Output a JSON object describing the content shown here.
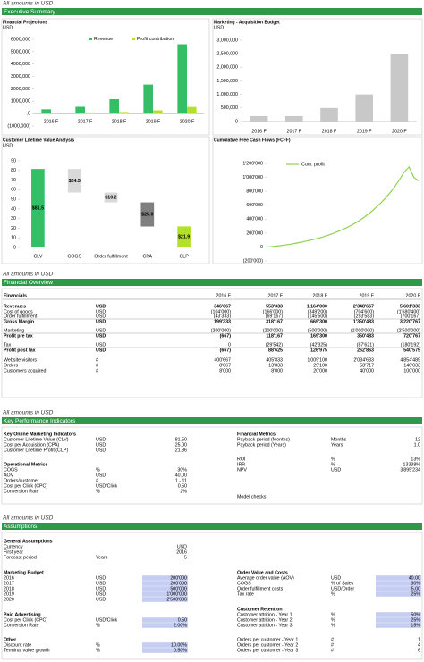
{
  "sections": [
    {
      "note": "All amounts in USD",
      "title": "Executive Summary"
    },
    {
      "note": "All amounts in USD",
      "title": "Financial Overview"
    },
    {
      "note": "All amounts in USD",
      "title": "Key Performance Indicators"
    },
    {
      "note": "All amounts in USD",
      "title": "Assumptions"
    }
  ],
  "chart_data": [
    {
      "type": "bar",
      "title": "Financial Projections",
      "unit": "USD",
      "categories": [
        "2016 F",
        "2017 F",
        "2018 F",
        "2019 F",
        "2020 F"
      ],
      "series": [
        {
          "name": "Revenue",
          "color": "#34bf67",
          "values": [
            346667,
            553333,
            1164000,
            2348667,
            5601333
          ]
        },
        {
          "name": "Profit contribution",
          "color": "#b3e12a",
          "values": [
            -667,
            88625,
            126975,
            262863,
            540575
          ]
        }
      ],
      "ylim": [
        -1000000,
        6000000
      ],
      "yticks": [
        {
          "value": 6000000,
          "label": "6000,000"
        },
        {
          "value": 5000000,
          "label": "5000,000"
        },
        {
          "value": 4000000,
          "label": "4000,000"
        },
        {
          "value": 3000000,
          "label": "3000,000"
        },
        {
          "value": 2000000,
          "label": "2000,000"
        },
        {
          "value": 1000000,
          "label": "1000,000"
        },
        {
          "value": 0,
          "label": ".0"
        },
        {
          "value": -1000000,
          "label": "(1000,000)"
        }
      ]
    },
    {
      "type": "bar",
      "title": "Marketing - Acquisition Budget",
      "unit": "USD",
      "categories": [
        "2016 F",
        "2017 F",
        "2018 F",
        "2019 F",
        "2020 F"
      ],
      "series": [
        {
          "color": "#c8c8c8",
          "values": [
            200000,
            200000,
            500000,
            1000000,
            2500000
          ]
        }
      ],
      "ylim": [
        0,
        3000000
      ],
      "yticks": [
        0,
        {
          "value": 500000,
          "label": "500,000"
        },
        {
          "value": 1000000,
          "label": "1,000,000"
        },
        {
          "value": 1500000,
          "label": "1,500,000"
        },
        {
          "value": 2000000,
          "label": "2,000,000"
        },
        {
          "value": 2500000,
          "label": "2,500,000"
        },
        {
          "value": 3000000,
          "label": "3,000,000"
        }
      ]
    },
    {
      "type": "waterfall",
      "title": "Customer Lifetime Value Analysis",
      "unit": "USD",
      "categories": [
        "CLV",
        "COGS",
        "Order fulfillment",
        "CPA",
        "CLP"
      ],
      "values": [
        81.5,
        24.5,
        10.2,
        25.0,
        21.9
      ],
      "value_labels": [
        "$81.5",
        "$24.5",
        "$10.2",
        "$25.0",
        "$21.9"
      ],
      "colors": [
        "#34bf67",
        "#d9d9d9",
        "#d9d9d9",
        "#7f7f7f",
        "#b3e12a"
      ],
      "ylim": [
        0,
        90
      ],
      "yticks": [
        0,
        10,
        20,
        30,
        40,
        50,
        60,
        70,
        80,
        90
      ]
    },
    {
      "type": "line",
      "title": "Cumulative Free Cash Flows (FCFF)",
      "series": [
        {
          "name": "Cum. profit",
          "color": "#8fd14f",
          "values": [
            0,
            5000,
            12000,
            20000,
            30000,
            40000,
            52000,
            65000,
            80000,
            95000,
            110000,
            128000,
            148000,
            170000,
            195000,
            222000,
            250000,
            282000,
            318000,
            358000,
            400000,
            450000,
            505000,
            565000,
            630000,
            700000,
            780000,
            870000,
            970000,
            1080000,
            1150000,
            1000000,
            950000
          ]
        }
      ],
      "ylim": [
        -200000,
        1200000
      ],
      "yticks": [
        {
          "value": 1200000,
          "label": "1'200'000"
        },
        {
          "value": 1000000,
          "label": "1'000'000"
        },
        {
          "value": 800000,
          "label": "800'000"
        },
        {
          "value": 600000,
          "label": "600'000"
        },
        {
          "value": 400000,
          "label": "400'000"
        },
        {
          "value": 200000,
          "label": "200'000"
        },
        0,
        {
          "value": -200000,
          "label": "(200'000)"
        }
      ]
    }
  ],
  "financial_overview": {
    "header": [
      "Financials",
      "2016 F",
      "2017 F",
      "2018 F",
      "2019 F",
      "2020 F"
    ],
    "rows": [
      [
        "Revenues",
        "USD",
        "346'667",
        "553'333",
        "1'164'000",
        "2'348'667",
        "5'601'333"
      ],
      [
        "Cost of goods",
        "USD",
        "(104'000)",
        "(166'000)",
        "(349'200)",
        "(704'600)",
        "(1'680'400)"
      ],
      [
        "Order fulfillment",
        "USD",
        "(43'333)",
        "(69'167)",
        "(145'500)",
        "(293'583)",
        "(700'167)"
      ],
      [
        "Gross Margin",
        "USD",
        "199'333",
        "318'167",
        "669'300",
        "1'350'483",
        "3'220'767"
      ],
      [
        "Marketing",
        "USD",
        "(200'000)",
        "(200'000)",
        "(500'000)",
        "(1'000'000)",
        "(2'500'000)"
      ],
      [
        "Profit pre tax",
        "USD",
        "(667)",
        "118'167",
        "169'300",
        "350'483",
        "720'767"
      ],
      [
        "Tax",
        "USD",
        "0",
        "(29'542)",
        "(42'325)",
        "(87'621)",
        "(180'192)"
      ],
      [
        "Profit post tax",
        "USD",
        "(667)",
        "88'625",
        "126'975",
        "262'863",
        "540'575"
      ],
      [
        "Website visitors",
        "#",
        "400'667",
        "405'833",
        "1'009'100",
        "2'034'633",
        "4'854'489"
      ],
      [
        "Orders",
        "#",
        "8'667",
        "13'833",
        "29'100",
        "58'717",
        "140'033"
      ],
      [
        "Customers acquired",
        "#",
        "8'000",
        "8'000",
        "20'000",
        "40'000",
        "100'000"
      ]
    ]
  },
  "kpi": {
    "left": [
      {
        "title": "Key Online Marketing Indicators",
        "rows": [
          [
            "Customer Lifetime Value (CLV)",
            "USD",
            "81.50"
          ],
          [
            "Cost per Acquisition (CPA)",
            "USD",
            "25.00"
          ],
          [
            "Customer Lifetime Profit (CLP)",
            "USD",
            "21.86"
          ]
        ]
      },
      {
        "title": "Operational Metrics",
        "rows": [
          [
            "COGS",
            "%",
            "30%"
          ],
          [
            "AOV",
            "USD",
            "40.00"
          ],
          [
            "Orders/customer",
            "#",
            "1 - 11"
          ],
          [
            "Cost per Click (CPC)",
            "USD/Click",
            "0.50"
          ],
          [
            "Conversion Rate",
            "%",
            "2%"
          ]
        ]
      }
    ],
    "right": [
      {
        "title": "Financial Metrics",
        "rows": [
          [
            "Payback period (Months)",
            "Months",
            "12"
          ],
          [
            "Payback period (Years)",
            "Years",
            "1.0"
          ]
        ]
      },
      {
        "rows": [
          [
            "ROI",
            "%",
            "13%"
          ],
          [
            "IRR",
            "%",
            "13338%"
          ],
          [
            "NPV",
            "USD",
            "3'895'234"
          ]
        ]
      },
      {
        "rows": [
          [
            "Model checks"
          ]
        ]
      }
    ]
  },
  "assumptions": {
    "left": [
      {
        "title": "General Assumptions",
        "rows": [
          [
            "Currency",
            "",
            "USD"
          ],
          [
            "First year",
            "",
            "2016"
          ],
          [
            "Forecast period",
            "Years",
            "5"
          ]
        ]
      },
      {
        "title": "Marketing Budget",
        "rows": [
          [
            "2016",
            "USD",
            "200'000"
          ],
          [
            "2017",
            "USD",
            "200'000"
          ],
          [
            "2018",
            "USD",
            "500'000"
          ],
          [
            "2019",
            "USD",
            "1'000'000"
          ],
          [
            "2020",
            "USD",
            "2'500'000"
          ]
        ]
      },
      {
        "title": "Paid Advertising",
        "rows": [
          [
            "Cost per Click (CPC)",
            "USD/Click",
            "0.50"
          ],
          [
            "Conversion Rate",
            "%",
            "2.00%"
          ]
        ]
      },
      {
        "title": "Other",
        "rows": [
          [
            "Discount rate",
            "%",
            "10.00%"
          ],
          [
            "Terminal value growth",
            "%",
            "0.50%"
          ]
        ]
      }
    ],
    "right": [
      {
        "title": "Order Value and Costs",
        "rows": [
          [
            "Average order value (AOV)",
            "USD",
            "40.00"
          ],
          [
            "COGS",
            "% of Sales",
            "30%"
          ],
          [
            "Order fulfillment costs",
            "USD/Order",
            "5.00"
          ],
          [
            "Tax rate",
            "%",
            "25%"
          ]
        ]
      },
      {
        "title": "Customer Retention",
        "rows": [
          [
            "Customer attrition - Year 1",
            "%",
            "50%"
          ],
          [
            "Customer attrition - Year 2",
            "%",
            "25%"
          ],
          [
            "Customer attrition - Year 3",
            "%",
            "15%"
          ]
        ]
      },
      {
        "rows": [
          [
            "Orders per customer - Year 1",
            "#",
            "1"
          ],
          [
            "Orders per customer - Year 2",
            "#",
            "4"
          ],
          [
            "Orders per customer - Year 3",
            "#",
            "6"
          ]
        ]
      }
    ]
  }
}
